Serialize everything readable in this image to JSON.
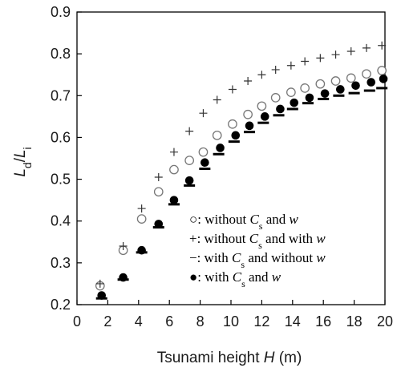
{
  "chart_data": {
    "type": "scatter",
    "title": "",
    "xlabel": {
      "prefix": "Tsunami height ",
      "var": "H",
      "suffix": " (m)"
    },
    "ylabel": {
      "main": "L",
      "sub1": "d",
      "slash": "/",
      "main2": "L",
      "sub2": "i"
    },
    "xlim": [
      0,
      20
    ],
    "ylim": [
      0.2,
      0.9
    ],
    "x_ticks": [
      0,
      2,
      4,
      6,
      8,
      10,
      12,
      14,
      16,
      18,
      20
    ],
    "y_ticks": [
      0.2,
      0.3,
      0.4,
      0.5,
      0.6,
      0.7,
      0.8,
      0.9
    ],
    "legend_position": "bottom-right",
    "series": [
      {
        "marker": "open-circle",
        "legend_parts": [
          {
            "t": "○: without ",
            "s": "normal"
          },
          {
            "t": "C",
            "s": "italic"
          },
          {
            "t": "s",
            "s": "sub"
          },
          {
            "t": " and ",
            "s": "normal"
          },
          {
            "t": "w",
            "s": "italic"
          }
        ],
        "x": [
          1.5,
          3.0,
          4.2,
          5.3,
          6.3,
          7.3,
          8.2,
          9.1,
          10.1,
          11.1,
          12.0,
          12.9,
          13.9,
          14.8,
          15.8,
          16.8,
          17.8,
          18.8,
          19.8
        ],
        "y": [
          0.245,
          0.33,
          0.405,
          0.47,
          0.523,
          0.545,
          0.565,
          0.605,
          0.632,
          0.655,
          0.675,
          0.695,
          0.708,
          0.718,
          0.728,
          0.735,
          0.742,
          0.752,
          0.76
        ]
      },
      {
        "marker": "plus",
        "legend_parts": [
          {
            "t": "+: without ",
            "s": "normal"
          },
          {
            "t": "C",
            "s": "italic"
          },
          {
            "t": "s",
            "s": "sub"
          },
          {
            "t": " and with ",
            "s": "normal"
          },
          {
            "t": "w",
            "s": "italic"
          }
        ],
        "x": [
          1.5,
          3.0,
          4.2,
          5.3,
          6.3,
          7.3,
          8.2,
          9.1,
          10.1,
          11.1,
          12.0,
          12.9,
          13.9,
          14.8,
          15.8,
          16.8,
          17.8,
          18.8,
          19.8
        ],
        "y": [
          0.25,
          0.34,
          0.43,
          0.505,
          0.565,
          0.615,
          0.658,
          0.69,
          0.715,
          0.735,
          0.75,
          0.762,
          0.772,
          0.782,
          0.79,
          0.798,
          0.806,
          0.814,
          0.82
        ]
      },
      {
        "marker": "dash",
        "legend_parts": [
          {
            "t": "−: with ",
            "s": "normal"
          },
          {
            "t": "C",
            "s": "italic"
          },
          {
            "t": "s",
            "s": "sub"
          },
          {
            "t": " and without ",
            "s": "normal"
          },
          {
            "t": "w",
            "s": "italic"
          }
        ],
        "x": [
          1.6,
          3.0,
          4.2,
          5.3,
          6.3,
          7.3,
          8.3,
          9.2,
          10.2,
          11.2,
          12.1,
          13.1,
          14.0,
          15.0,
          16.0,
          17.0,
          18.0,
          19.0,
          19.8
        ],
        "y": [
          0.215,
          0.26,
          0.325,
          0.385,
          0.44,
          0.485,
          0.525,
          0.56,
          0.59,
          0.613,
          0.635,
          0.653,
          0.668,
          0.682,
          0.692,
          0.7,
          0.706,
          0.712,
          0.718
        ]
      },
      {
        "marker": "filled-circle",
        "legend_parts": [
          {
            "t": "●: with ",
            "s": "normal"
          },
          {
            "t": "C",
            "s": "italic"
          },
          {
            "t": "s",
            "s": "sub"
          },
          {
            "t": " and ",
            "s": "normal"
          },
          {
            "t": "w",
            "s": "italic"
          }
        ],
        "x": [
          1.6,
          3.0,
          4.2,
          5.3,
          6.3,
          7.3,
          8.3,
          9.3,
          10.3,
          11.2,
          12.2,
          13.2,
          14.1,
          15.1,
          16.1,
          17.1,
          18.1,
          19.1,
          19.9
        ],
        "y": [
          0.222,
          0.265,
          0.33,
          0.393,
          0.45,
          0.497,
          0.54,
          0.575,
          0.605,
          0.628,
          0.65,
          0.668,
          0.683,
          0.695,
          0.705,
          0.715,
          0.724,
          0.732,
          0.74
        ]
      }
    ]
  }
}
